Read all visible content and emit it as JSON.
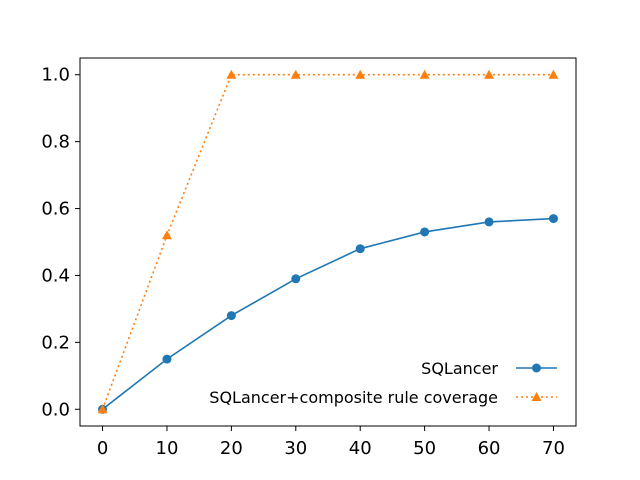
{
  "chart_data": {
    "type": "line",
    "title": "",
    "xlabel": "",
    "ylabel": "",
    "x": [
      0,
      10,
      20,
      30,
      40,
      50,
      60,
      70
    ],
    "xlim": [
      -3.5,
      73.5
    ],
    "ylim": [
      -0.05,
      1.05
    ],
    "xticks": [
      0,
      10,
      20,
      30,
      40,
      50,
      60,
      70
    ],
    "yticks": [
      0.0,
      0.2,
      0.4,
      0.6,
      0.8,
      1.0
    ],
    "xtick_labels": [
      "0",
      "10",
      "20",
      "30",
      "40",
      "50",
      "60",
      "70"
    ],
    "ytick_labels": [
      "0.0",
      "0.2",
      "0.4",
      "0.6",
      "0.8",
      "1.0"
    ],
    "grid": false,
    "legend_position": "bottom-right",
    "series": [
      {
        "name": "SQLancer",
        "values": [
          0.0,
          0.15,
          0.28,
          0.39,
          0.48,
          0.53,
          0.56,
          0.57
        ],
        "color": "#1f77b4",
        "line_style": "solid",
        "marker": "circle"
      },
      {
        "name": "SQLancer+composite rule coverage",
        "values": [
          0.0,
          0.52,
          1.0,
          1.0,
          1.0,
          1.0,
          1.0,
          1.0
        ],
        "color": "#ff7f0e",
        "line_style": "dotted",
        "marker": "triangle"
      }
    ]
  }
}
